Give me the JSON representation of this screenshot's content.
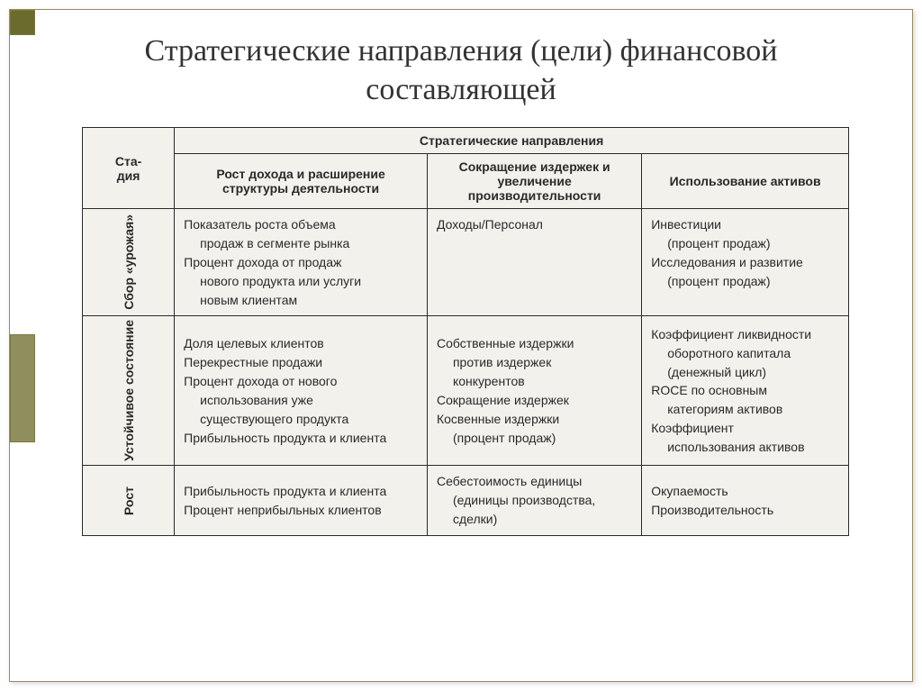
{
  "title": "Стратегические направления (цели) финансовой составляющей",
  "headers": {
    "stage": "Ста-",
    "stage2": "дия",
    "directions": "Стратегические направления",
    "growth": "Рост дохода и расширение структуры деятельности",
    "cost": "Сокращение издержек и увеличение производительности",
    "asset": "Использование активов"
  },
  "stages": {
    "harvest": "Сбор «урожая»",
    "sustain": "Устойчивое состояние",
    "growth": "Рост"
  },
  "cells": {
    "r1c1_a": "Показатель роста объема",
    "r1c1_a2": "продаж в сегменте рынка",
    "r1c1_b": "Процент дохода от продаж",
    "r1c1_b2": "нового продукта или услуги",
    "r1c1_b3": "новым клиентам",
    "r1c2_a": "Доходы/Персонал",
    "r1c3_a": "Инвестиции",
    "r1c3_a2": "(процент продаж)",
    "r1c3_b": "Исследования и развитие",
    "r1c3_b2": "(процент продаж)",
    "r2c1_a": "Доля целевых клиентов",
    "r2c1_b": "Перекрестные продажи",
    "r2c1_c": "Процент дохода от нового",
    "r2c1_c2": "использования уже",
    "r2c1_c3": "существующего продукта",
    "r2c1_d": "Прибыльность продукта и клиента",
    "r2c2_a": "Собственные издержки",
    "r2c2_a2": "против издержек",
    "r2c2_a3": "конкурентов",
    "r2c2_b": "Сокращение издержек",
    "r2c2_c": "Косвенные издержки",
    "r2c2_c2": "(процент продаж)",
    "r2c3_a": "Коэффициент ликвидности",
    "r2c3_a2": "оборотного капитала",
    "r2c3_a3": "(денежный цикл)",
    "r2c3_b": "ROCE по основным",
    "r2c3_b2": "категориям активов",
    "r2c3_c": "Коэффициент",
    "r2c3_c2": "использования активов",
    "r3c1_a": "Прибыльность продукта и клиента",
    "r3c1_b": "Процент неприбыльных клиентов",
    "r3c2_a": "Себестоимость единицы",
    "r3c2_a2": "(единицы производства,",
    "r3c2_a3": "сделки)",
    "r3c3_a": "Окупаемость",
    "r3c3_b": "Производительность"
  },
  "colors": {
    "accent_dark": "#6b6b2e",
    "accent_light": "#8f8f5e",
    "table_bg": "#f2f1ec",
    "border": "#2a2a2a",
    "title_color": "#333333"
  }
}
